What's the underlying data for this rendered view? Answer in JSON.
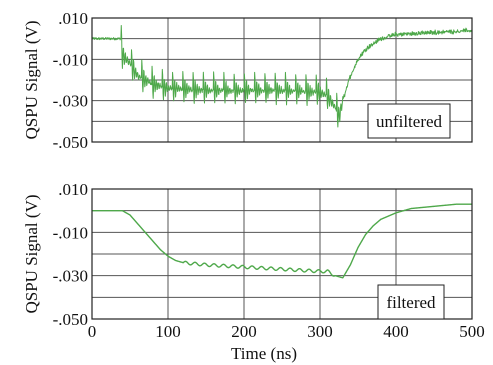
{
  "colors": {
    "trace": "#4ea84a",
    "grid": "#555555",
    "frame": "#222222"
  },
  "chart_data": [
    {
      "type": "line",
      "panel": "top",
      "annotation": "unfiltered",
      "xlabel": "",
      "ylabel": "QSPU Signal (V)",
      "xlim": [
        0,
        500
      ],
      "ylim": [
        -0.05,
        0.01
      ],
      "x_ticks": [
        0,
        100,
        200,
        300,
        400,
        500
      ],
      "y_ticks": [
        0.01,
        -0.01,
        -0.03,
        -0.05
      ],
      "y_tick_labels": [
        ".010",
        "-.010",
        "-.030",
        "-.050"
      ],
      "grid": true,
      "series": [
        {
          "x": [
            0,
            20,
            38,
            40,
            50,
            60,
            80,
            100,
            150,
            200,
            250,
            300,
            310,
            320,
            325,
            330,
            340,
            350,
            360,
            380,
            400,
            450,
            500
          ],
          "y": [
            0.0,
            0.0,
            0.0,
            -0.008,
            -0.012,
            -0.018,
            -0.022,
            -0.024,
            -0.025,
            -0.025,
            -0.025,
            -0.026,
            -0.028,
            -0.033,
            -0.038,
            -0.03,
            -0.018,
            -0.01,
            -0.005,
            0.0,
            0.002,
            0.003,
            0.004
          ]
        }
      ]
    },
    {
      "type": "line",
      "panel": "bottom",
      "annotation": "filtered",
      "xlabel": "Time (ns)",
      "ylabel": "QSPU Signal (V)",
      "xlim": [
        0,
        500
      ],
      "ylim": [
        -0.05,
        0.01
      ],
      "x_ticks": [
        0,
        100,
        200,
        300,
        400,
        500
      ],
      "x_tick_labels": [
        "0",
        "100",
        "200",
        "300",
        "400",
        "500"
      ],
      "y_ticks": [
        0.01,
        -0.01,
        -0.03,
        -0.05
      ],
      "y_tick_labels": [
        ".010",
        "-.010",
        "-.030",
        "-.050"
      ],
      "grid": true,
      "series": [
        {
          "x": [
            0,
            20,
            40,
            50,
            60,
            70,
            80,
            90,
            100,
            110,
            120,
            150,
            200,
            250,
            300,
            310,
            320,
            330,
            340,
            350,
            360,
            370,
            380,
            400,
            420,
            450,
            480,
            500
          ],
          "y": [
            0.0,
            0.0,
            0.0,
            -0.002,
            -0.006,
            -0.01,
            -0.014,
            -0.018,
            -0.021,
            -0.023,
            -0.024,
            -0.025,
            -0.026,
            -0.027,
            -0.028,
            -0.028,
            -0.03,
            -0.031,
            -0.025,
            -0.017,
            -0.011,
            -0.007,
            -0.004,
            -0.001,
            0.001,
            0.002,
            0.003,
            0.003
          ]
        }
      ]
    }
  ]
}
